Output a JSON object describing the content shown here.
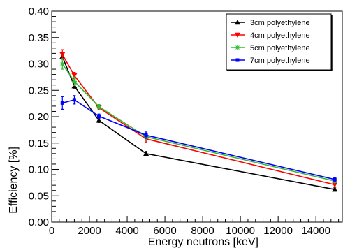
{
  "chart_data": {
    "type": "line",
    "xlabel": "Energy neutrons [keV]",
    "ylabel": "Efficiency [%]",
    "xlim": [
      0,
      15400
    ],
    "ylim": [
      0,
      0.4
    ],
    "x_ticks": [
      0,
      2000,
      4000,
      6000,
      8000,
      10000,
      12000,
      14000
    ],
    "y_ticks": [
      0.0,
      0.05,
      0.1,
      0.15,
      0.2,
      0.25,
      0.3,
      0.35,
      0.4
    ],
    "x_tick_labels": [
      "0",
      "2000",
      "4000",
      "6000",
      "8000",
      "10000",
      "12000",
      "14000"
    ],
    "y_tick_labels": [
      "0.00",
      "0.05",
      "0.10",
      "0.15",
      "0.20",
      "0.25",
      "0.30",
      "0.35",
      "0.40"
    ],
    "grid": false,
    "legend_position": "top-right",
    "x": [
      565,
      1200,
      2500,
      5000,
      15000
    ],
    "series": [
      {
        "name": "3cm polyethylene",
        "color": "#000000",
        "marker": "triangle-up",
        "values": [
          0.314,
          0.258,
          0.193,
          0.13,
          0.062
        ],
        "errors": [
          0.005,
          0.004,
          0.004,
          0.004,
          0.003
        ]
      },
      {
        "name": "4cm polyethylene",
        "color": "#ff0000",
        "marker": "triangle-down",
        "values": [
          0.318,
          0.278,
          0.217,
          0.158,
          0.071
        ],
        "errors": [
          0.009,
          0.006,
          0.004,
          0.006,
          0.004
        ]
      },
      {
        "name": "5cm polyethylene",
        "color": "#33bb33",
        "marker": "star",
        "values": [
          0.3,
          0.267,
          0.219,
          0.162,
          0.078
        ],
        "errors": [
          0.01,
          0.008,
          0.004,
          0.005,
          0.003
        ]
      },
      {
        "name": "7cm polyethylene",
        "color": "#0000ff",
        "marker": "square",
        "values": [
          0.226,
          0.232,
          0.201,
          0.165,
          0.081
        ],
        "errors": [
          0.012,
          0.008,
          0.004,
          0.006,
          0.004
        ]
      }
    ]
  }
}
